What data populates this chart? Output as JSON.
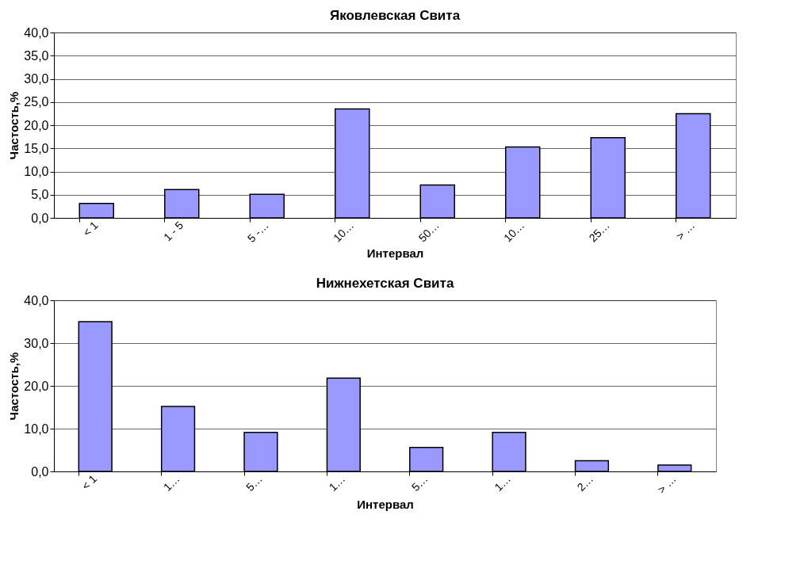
{
  "chart_data": [
    {
      "type": "bar",
      "title": "Яковлевская Свита",
      "xlabel": "Интервал",
      "ylabel": "Частость,%",
      "categories": [
        "< 1",
        "1 - 5",
        "5 -…",
        "10…",
        "50…",
        "10…",
        "25…",
        "> …"
      ],
      "series": [
        {
          "color": "#9999ff",
          "values": [
            3.1,
            6.1,
            5.1,
            23.5,
            7.1,
            15.3,
            17.3,
            22.5
          ]
        }
      ],
      "ylim": [
        0,
        40
      ],
      "yticks": [
        {
          "value": 0,
          "label": "0,0"
        },
        {
          "value": 5,
          "label": "5,0"
        },
        {
          "value": 10,
          "label": "10,0"
        },
        {
          "value": 15,
          "label": "15,0"
        },
        {
          "value": 20,
          "label": "20,0"
        },
        {
          "value": 25,
          "label": "25,0"
        },
        {
          "value": 30,
          "label": "30,0"
        },
        {
          "value": 35,
          "label": "35,0"
        },
        {
          "value": 40,
          "label": "40,0"
        }
      ],
      "grid": "y",
      "legend": false
    },
    {
      "type": "bar",
      "title": "Нижнехетская Свита",
      "xlabel": "Интервал",
      "ylabel": "Частость,%",
      "categories": [
        "< 1",
        "1…",
        "5…",
        "1…",
        "5…",
        "1…",
        "2…",
        "> …"
      ],
      "series": [
        {
          "color": "#9999ff",
          "values": [
            35.0,
            15.2,
            9.1,
            21.8,
            5.6,
            9.1,
            2.5,
            1.5
          ]
        }
      ],
      "ylim": [
        0,
        40
      ],
      "yticks": [
        {
          "value": 0,
          "label": "0,0"
        },
        {
          "value": 10,
          "label": "10,0"
        },
        {
          "value": 20,
          "label": "20,0"
        },
        {
          "value": 30,
          "label": "30,0"
        },
        {
          "value": 40,
          "label": "40,0"
        }
      ],
      "grid": "y",
      "legend": false
    }
  ]
}
